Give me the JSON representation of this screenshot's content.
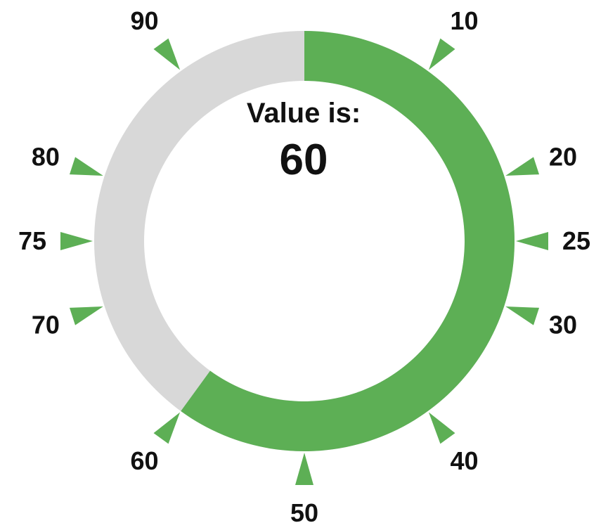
{
  "chart_data": {
    "type": "gauge",
    "min": 0,
    "max": 100,
    "value": 60,
    "caption": "Value is:",
    "value_label": "60",
    "ticks": [
      {
        "value": 10,
        "label": "10"
      },
      {
        "value": 20,
        "label": "20"
      },
      {
        "value": 25,
        "label": "25"
      },
      {
        "value": 30,
        "label": "30"
      },
      {
        "value": 40,
        "label": "40"
      },
      {
        "value": 50,
        "label": "50"
      },
      {
        "value": 60,
        "label": "60"
      },
      {
        "value": 70,
        "label": "70"
      },
      {
        "value": 75,
        "label": "75"
      },
      {
        "value": 80,
        "label": "80"
      },
      {
        "value": 90,
        "label": "90"
      }
    ],
    "colors": {
      "filled": "#5daf55",
      "track": "#d8d8d8",
      "tick": "#5daf55",
      "text": "#111111"
    }
  }
}
